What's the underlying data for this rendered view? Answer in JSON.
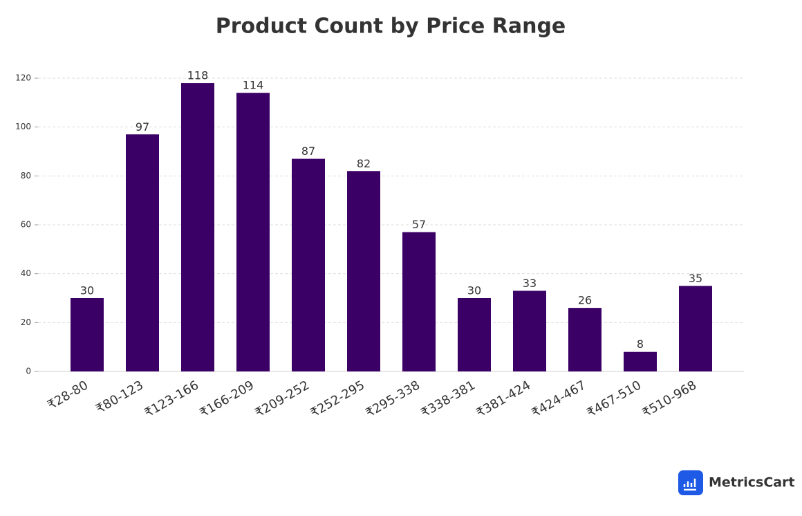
{
  "chart_data": {
    "type": "bar",
    "title": "Product Count by Price Range",
    "categories": [
      "₹28-80",
      "₹80-123",
      "₹123-166",
      "₹166-209",
      "₹209-252",
      "₹252-295",
      "₹295-338",
      "₹338-381",
      "₹381-424",
      "₹424-467",
      "₹467-510",
      "₹510-968"
    ],
    "values": [
      30,
      97,
      118,
      114,
      87,
      82,
      57,
      30,
      33,
      26,
      8,
      35
    ],
    "color": "#3b0066",
    "ylim": [
      0,
      120
    ],
    "yticks": [
      0,
      20,
      40,
      60,
      80,
      100,
      120
    ],
    "grid": true
  },
  "brand": "MetricsCart"
}
